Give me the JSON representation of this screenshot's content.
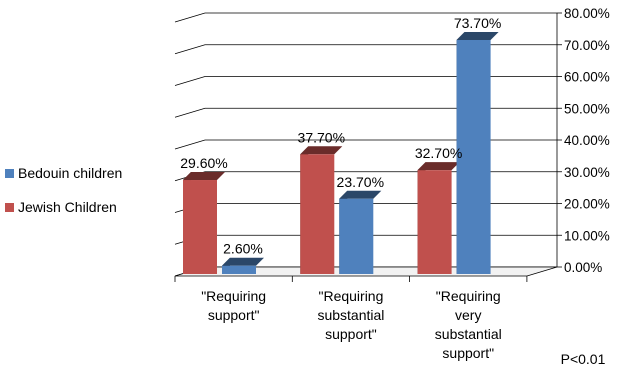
{
  "chart_data": {
    "type": "bar",
    "title": "",
    "xlabel": "",
    "ylabel": "",
    "categories": [
      [
        "\"Requiring",
        "support\""
      ],
      [
        "\"Requiring",
        "substantial",
        "support\""
      ],
      [
        "\"Requiring",
        "very",
        "substantial",
        "support\""
      ]
    ],
    "series": [
      {
        "name": "Jewish Children",
        "values": [
          29.6,
          37.7,
          32.7
        ],
        "labels": [
          "29.60%",
          "37.70%",
          "32.70%"
        ],
        "color": "#c0504d"
      },
      {
        "name": "Bedouin children",
        "values": [
          2.6,
          23.7,
          73.7
        ],
        "labels": [
          "2.60%",
          "23.70%",
          "73.70%"
        ],
        "color": "#4f81bd"
      }
    ],
    "ylim": [
      0,
      80
    ],
    "yticks": [
      "0.00%",
      "10.00%",
      "20.00%",
      "30.00%",
      "40.00%",
      "50.00%",
      "60.00%",
      "70.00%",
      "80.00%"
    ],
    "legend": {
      "position": "left",
      "entries": [
        {
          "name": "Bedouin children",
          "color": "#4f81bd"
        },
        {
          "name": "Jewish Children",
          "color": "#c0504d"
        }
      ]
    },
    "grid": true,
    "annotation": "P<0.01"
  }
}
